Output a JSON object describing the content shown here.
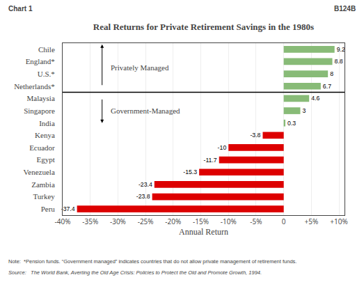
{
  "chart_data": {
    "type": "bar",
    "orientation": "horizontal",
    "title": "Real Returns for Private Retirement Savings in the 1980s",
    "xlabel": "Annual Return",
    "categories": [
      "Peru",
      "Turkey",
      "Zambia",
      "Venezuela",
      "Egypt",
      "Ecuador",
      "Kenya",
      "India",
      "Singapore",
      "Malaysia",
      "Netherlands*",
      "U.S.*",
      "England*",
      "Chile"
    ],
    "values": [
      -37.4,
      -23.8,
      -23.4,
      -15.3,
      -11.7,
      -10,
      -3.8,
      0.3,
      3,
      4.6,
      6.7,
      8,
      8.8,
      9.2
    ],
    "colors": [
      "#dd0000",
      "#dd0000",
      "#dd0000",
      "#dd0000",
      "#dd0000",
      "#dd0000",
      "#dd0000",
      "#88bb77",
      "#88bb77",
      "#88bb77",
      "#88bb77",
      "#88bb77",
      "#88bb77",
      "#88bb77"
    ],
    "data_labels": true,
    "xlim": [
      -40,
      11
    ],
    "xticks": [
      {
        "value": -40,
        "label": "-40%"
      },
      {
        "value": -35,
        "label": "-35%"
      },
      {
        "value": -30,
        "label": "-30%"
      },
      {
        "value": -25,
        "label": "-25%"
      },
      {
        "value": -20,
        "label": "-20%"
      },
      {
        "value": -15,
        "label": "-15%"
      },
      {
        "value": -10,
        "label": "-10%"
      },
      {
        "value": -5,
        "label": "-5%"
      },
      0,
      {
        "value": 5,
        "label": "+5%"
      },
      {
        "value": 10,
        "label": "+10%"
      }
    ],
    "grid": true,
    "annotations": [
      {
        "text": "Chart 1"
      },
      {
        "text": "B124B"
      },
      {
        "text": "Privately Managed"
      },
      {
        "text": "Government-Managed"
      },
      {
        "text": "Note:  *Pension funds. “Government managed” indicates countries that do not allow private management of retirement funds."
      },
      {
        "text": "Source:   The World Bank, Averting the Old Age Crisis: Policies to Protect the Old and Promote Growth, 1994."
      }
    ]
  }
}
